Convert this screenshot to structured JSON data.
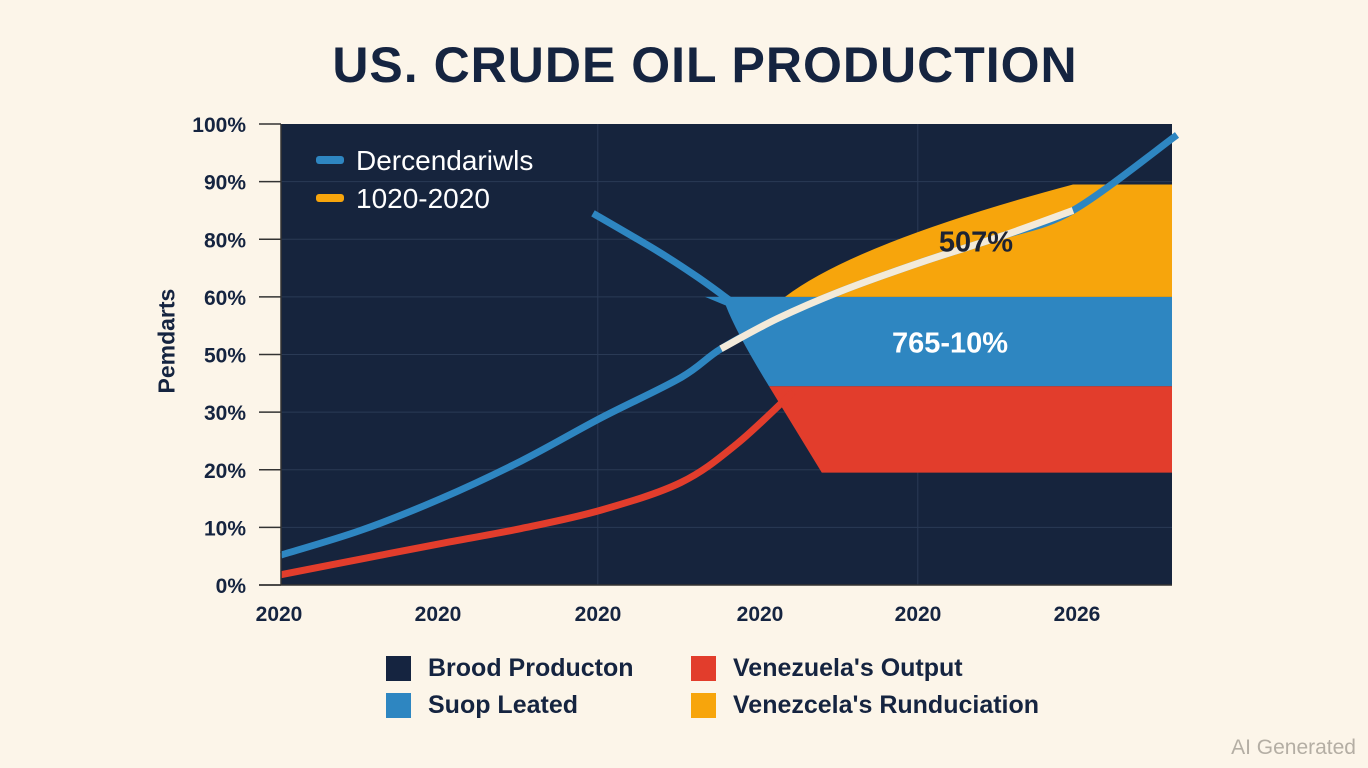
{
  "watermark": "AI Generated",
  "colors": {
    "background": "#fcf5e9",
    "plot_bg": "#16243d",
    "navy": "#152440",
    "blue": "#2e86c1",
    "red": "#e23d2c",
    "orange": "#f7a50c",
    "cream": "#f3ead9",
    "grid": "#2a3a55"
  },
  "chart_data": {
    "type": "area",
    "title": "US. CRUDE OIL PRODUCTION",
    "xlabel": "",
    "ylabel": "Pemdarts",
    "y_tick_labels": [
      "0%",
      "10%",
      "20%",
      "30%",
      "50%",
      "60%",
      "80%",
      "90%",
      "100%"
    ],
    "x_tick_labels": [
      "2020",
      "2020",
      "2020",
      "2020",
      "2020",
      "2026"
    ],
    "ylim": [
      0,
      8
    ],
    "xlim": [
      0,
      5.6
    ],
    "grid": true,
    "note": "Y-axis ticks are unevenly labeled; values below are on the tick-index scale (0 = '0%', 8 = '100%'), x in tick-index units (0 = first '2020').",
    "inner_legend": {
      "placement": "top-left",
      "entries": [
        {
          "label": "Dercendariwls",
          "color": "#2e86c1"
        },
        {
          "label": "1020-2020",
          "color": "#f7a50c"
        }
      ]
    },
    "series": [
      {
        "name": "Rising blue line",
        "kind": "line",
        "color": "#2e86c1",
        "highlight_color": "#f3ead9",
        "highlight_x_range": [
          2.75,
          4.95
        ],
        "points": [
          [
            0,
            0.52
          ],
          [
            0.5,
            0.95
          ],
          [
            1.0,
            1.5
          ],
          [
            1.5,
            2.15
          ],
          [
            2.0,
            2.9
          ],
          [
            2.5,
            3.6
          ],
          [
            2.75,
            4.1
          ],
          [
            3.1,
            4.62
          ],
          [
            3.5,
            5.1
          ],
          [
            4.0,
            5.6
          ],
          [
            4.5,
            6.05
          ],
          [
            4.95,
            6.5
          ],
          [
            5.6,
            7.81
          ]
        ]
      },
      {
        "name": "Declining blue line",
        "kind": "line",
        "color": "#2e86c1",
        "points": [
          [
            1.95,
            6.45
          ],
          [
            2.35,
            5.8
          ],
          [
            2.6,
            5.35
          ],
          [
            2.8,
            4.95
          ]
        ]
      },
      {
        "name": "Rising red line",
        "kind": "line",
        "color": "#e23d2c",
        "points": [
          [
            0,
            0.18
          ],
          [
            0.5,
            0.45
          ],
          [
            1.0,
            0.72
          ],
          [
            1.5,
            0.98
          ],
          [
            2.0,
            1.3
          ],
          [
            2.5,
            1.78
          ],
          [
            2.85,
            2.45
          ],
          [
            3.2,
            3.35
          ]
        ]
      },
      {
        "name": "Suop Leated",
        "kind": "band",
        "color": "#2e86c1",
        "x_start": 2.65,
        "upper": 5.0,
        "lower": 3.45,
        "label": "765-10%"
      },
      {
        "name": "Venezela's Runduciation",
        "kind": "band",
        "color": "#f7a50c",
        "x_start": 3.15,
        "upper": 6.95,
        "lower": 5.0,
        "label": "507%"
      },
      {
        "name": "Venezuela's Output",
        "kind": "band",
        "color": "#e23d2c",
        "x_start": 3.15,
        "upper": 3.45,
        "lower": 1.95
      }
    ],
    "legend": {
      "placement": "bottom",
      "entries": [
        {
          "label": "Brood Producton",
          "color": "#152440"
        },
        {
          "label": "Venezuela's Output",
          "color": "#e23d2c"
        },
        {
          "label": "Suop Leated",
          "color": "#2e86c1"
        },
        {
          "label": "Venezcela's Runduciation",
          "color": "#f7a50c"
        }
      ]
    }
  }
}
